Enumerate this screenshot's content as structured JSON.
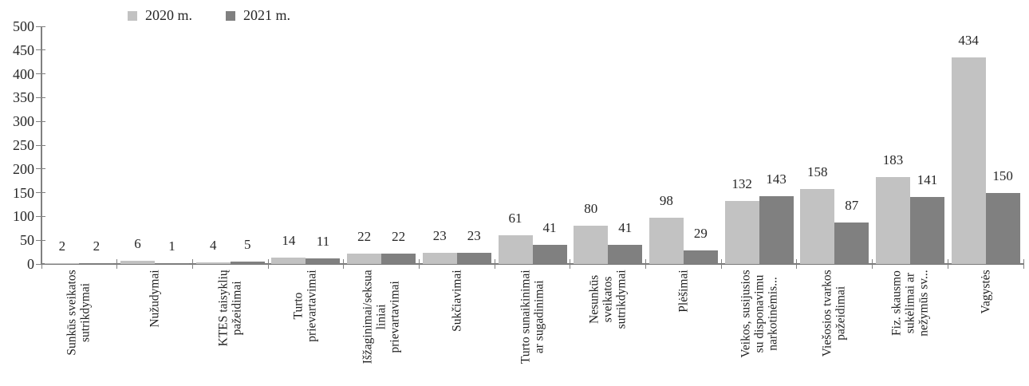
{
  "chart_data": {
    "type": "bar",
    "title": "",
    "xlabel": "",
    "ylabel": "",
    "ylim": [
      0,
      500
    ],
    "ytick_step": 50,
    "yticks": [
      0,
      50,
      100,
      150,
      200,
      250,
      300,
      350,
      400,
      450,
      500
    ],
    "grid": false,
    "legend_position": "top-left",
    "value_labels": true,
    "categories": [
      "Sunkūs sveikatos\nsutrikdymai",
      "Nužudymai",
      "KTES taisyklių\npažeidimai",
      "Turto\nprievartavimai",
      "Išžaginimai/seksua\nliniai\nprievartavimai",
      "Sukčiavimai",
      "Turto sunaikinimai\nar sugadinimai",
      "Nesunkūs\nsveikatos\nsutrikdymai",
      "Plėšimai",
      "Veikos, susijusios\nsu disponavimu\nnarkotinėmis...",
      "Viešosios tvarkos\npažeidimai",
      "Fiz. skausmo\nsukėlimai ar\nnežymūs sv...",
      "Vagystės"
    ],
    "series": [
      {
        "name": "2020 m.",
        "color": "#c2c2c2",
        "values": [
          2,
          6,
          4,
          14,
          22,
          23,
          61,
          80,
          98,
          132,
          158,
          183,
          434
        ]
      },
      {
        "name": "2021 m.",
        "color": "#808080",
        "values": [
          2,
          1,
          5,
          11,
          22,
          23,
          41,
          41,
          29,
          143,
          87,
          141,
          150
        ]
      }
    ]
  },
  "colors": {
    "background": "#ffffff",
    "axis": "#808080",
    "text": "#262626",
    "series_2020": "#c2c2c2",
    "series_2021": "#808080"
  }
}
